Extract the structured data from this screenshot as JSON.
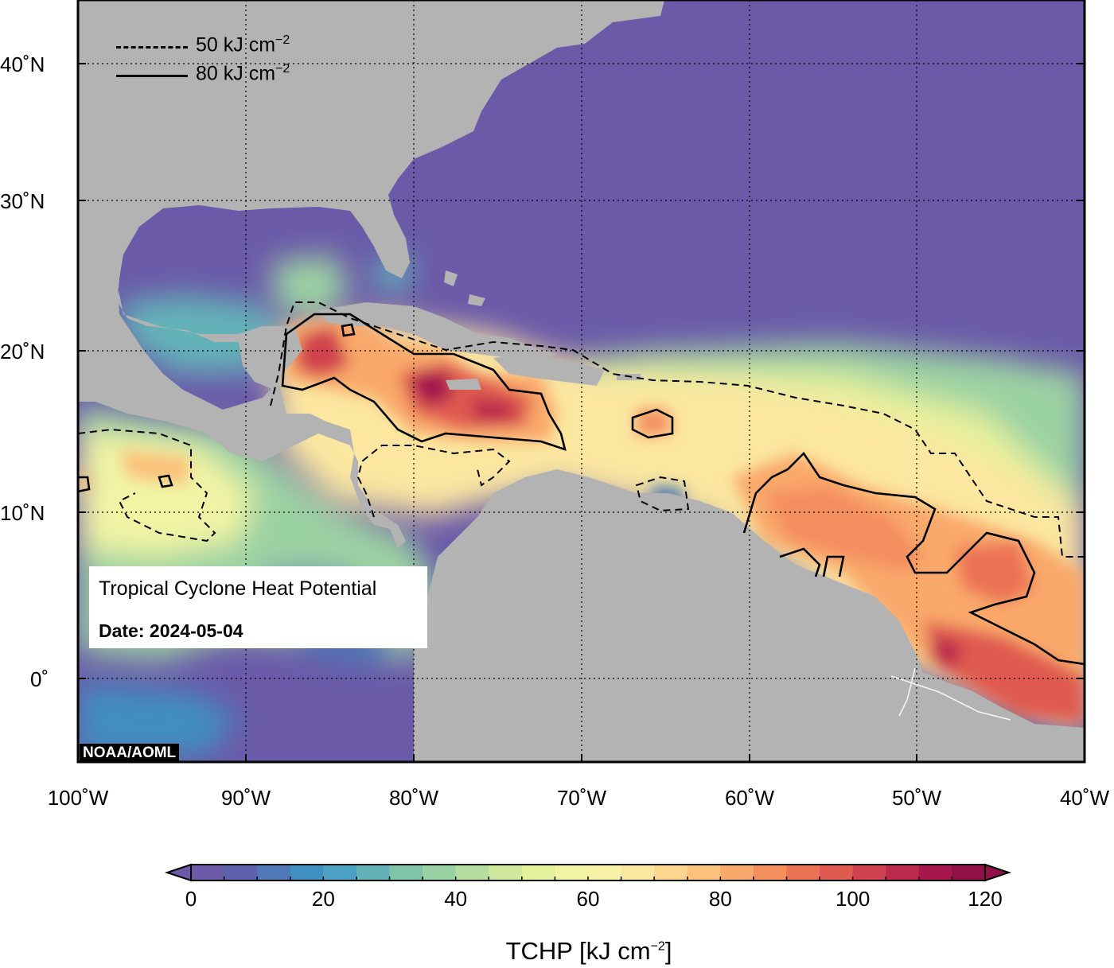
{
  "map": {
    "title": "Tropical Cyclone Heat Potential",
    "date": "Date: 2024-05-04",
    "credit": "NOAA/AOML",
    "lat_labels": [
      "40˚N",
      "30˚N",
      "20˚N",
      "10˚N",
      "0˚"
    ],
    "lon_labels": [
      "100˚W",
      "90˚W",
      "80˚W",
      "70˚W",
      "60˚W",
      "50˚W",
      "40˚W"
    ],
    "legend": [
      {
        "style": "dashed",
        "label": "50 kJ cm",
        "exp": "−2"
      },
      {
        "style": "solid",
        "label": "80 kJ cm",
        "exp": "−2"
      }
    ],
    "extent": {
      "lon_min": -100,
      "lon_max": -40,
      "lat_min": -5,
      "lat_max": 44
    }
  },
  "colorbar": {
    "title": "TCHP [kJ cm",
    "title_exp": "−2",
    "title_end": "]",
    "ticks": [
      "0",
      "20",
      "40",
      "60",
      "80",
      "100",
      "120"
    ],
    "min": 0,
    "max": 120,
    "step": 5,
    "colors": [
      "#6a5aa8",
      "#5e62ad",
      "#4f78b6",
      "#3f8fc0",
      "#4ca0c4",
      "#64b2b8",
      "#7fc4a9",
      "#9bd2a3",
      "#b4dd9f",
      "#cfe89d",
      "#e4f19b",
      "#f0f4a4",
      "#f8f2a8",
      "#fbe7a0",
      "#fcd68f",
      "#fbc27c",
      "#f9a96b",
      "#f48f5e",
      "#ec7255",
      "#df5a50",
      "#d0424d",
      "#bb2a4c",
      "#a6184d",
      "#901047"
    ]
  },
  "colors": {
    "land": "#b3b3b3",
    "low_ocean": "#6a5aa8",
    "frame": "#000000"
  }
}
